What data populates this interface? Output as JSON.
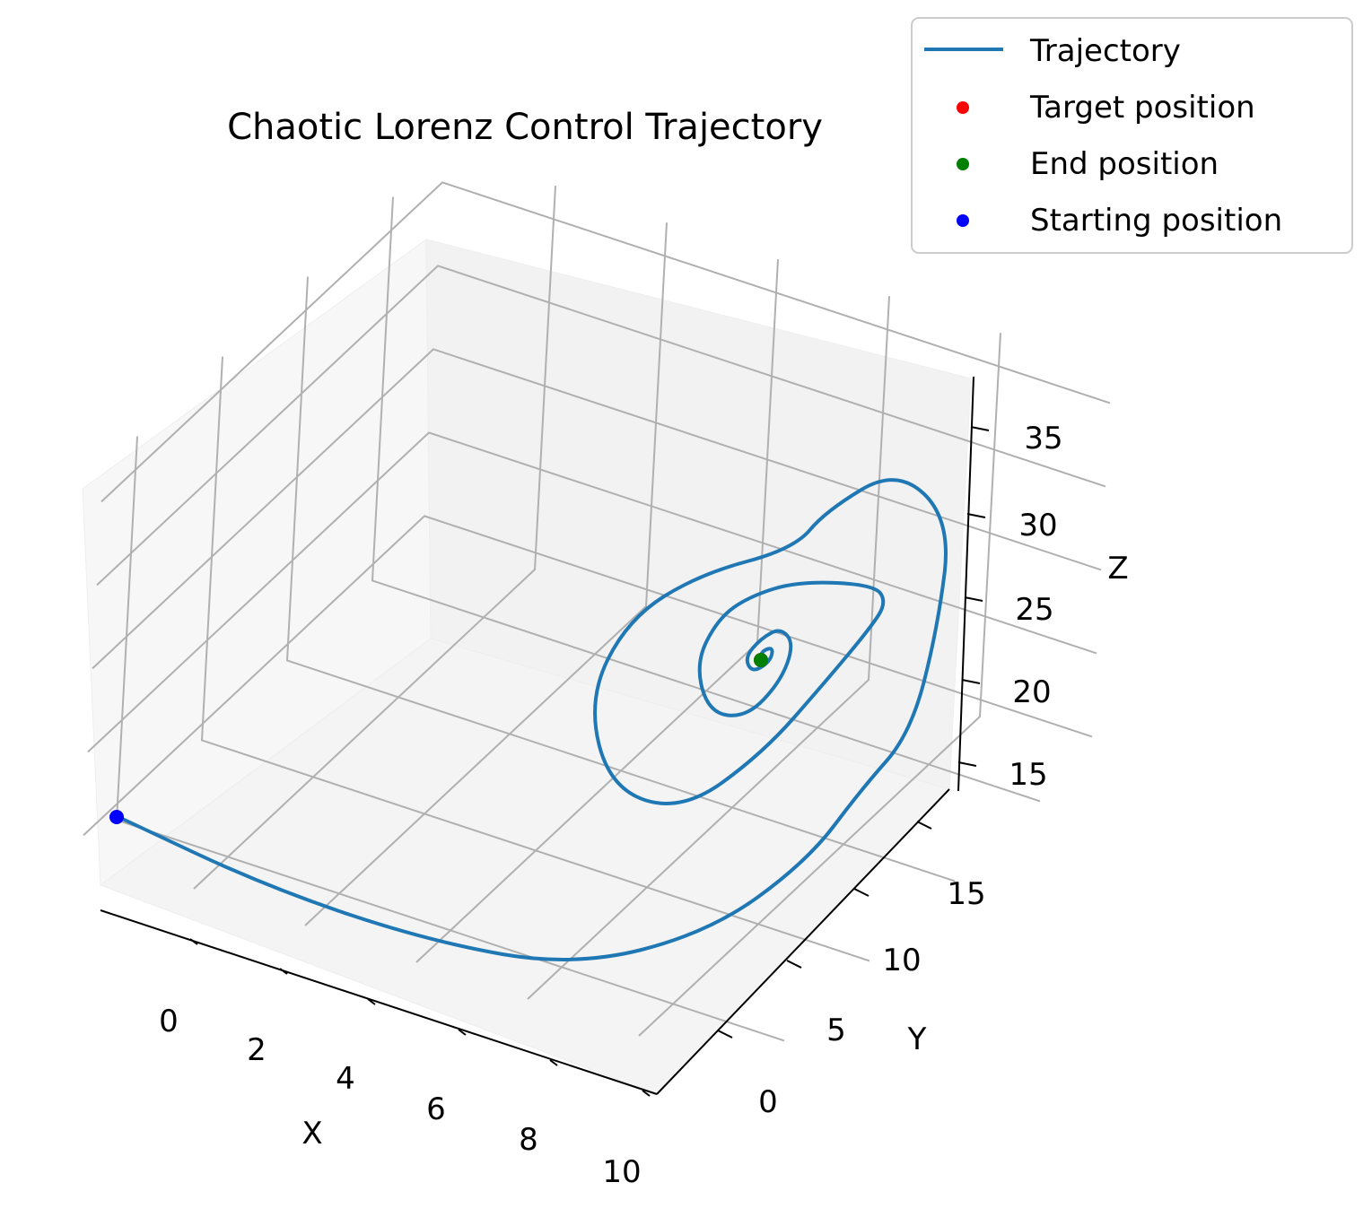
{
  "chart_data": {
    "type": "line",
    "projection": "3d",
    "title": "Chaotic Lorenz Control Trajectory",
    "xlabel": "X",
    "ylabel": "Y",
    "zlabel": "Z",
    "xlim": [
      -2,
      10
    ],
    "ylim": [
      -2,
      18
    ],
    "zlim": [
      14,
      37
    ],
    "x_ticks": [
      "0",
      "2",
      "4",
      "6",
      "8",
      "10"
    ],
    "y_ticks": [
      "0",
      "5",
      "10",
      "15"
    ],
    "z_ticks": [
      "15",
      "20",
      "25",
      "30",
      "35"
    ],
    "grid": true,
    "legend_position": "top-right",
    "legend": [
      {
        "label": "Trajectory",
        "kind": "line",
        "color": "#1f77b4"
      },
      {
        "label": "Target position",
        "kind": "marker",
        "color": "#ff0000"
      },
      {
        "label": "End position",
        "kind": "marker",
        "color": "#008000"
      },
      {
        "label": "Starting position",
        "kind": "marker",
        "color": "#0000ff"
      }
    ],
    "series": [
      {
        "name": "Trajectory",
        "color": "#1f77b4",
        "points": [
          {
            "x": -1.0,
            "y": 2.0,
            "z": 15.0
          },
          {
            "x": 2.0,
            "y": 2.5,
            "z": 12.0
          },
          {
            "x": 5.0,
            "y": 4.5,
            "z": 10.5
          },
          {
            "x": 7.5,
            "y": 8.0,
            "z": 11.5
          },
          {
            "x": 8.8,
            "y": 12.0,
            "z": 15.0
          },
          {
            "x": 9.0,
            "y": 14.5,
            "z": 20.0
          },
          {
            "x": 9.2,
            "y": 15.5,
            "z": 27.0
          },
          {
            "x": 8.2,
            "y": 14.5,
            "z": 33.0
          },
          {
            "x": 7.0,
            "y": 12.5,
            "z": 28.5
          },
          {
            "x": 5.5,
            "y": 10.0,
            "z": 25.0
          },
          {
            "x": 5.2,
            "y": 8.5,
            "z": 21.5
          },
          {
            "x": 6.0,
            "y": 8.5,
            "z": 18.5
          },
          {
            "x": 7.6,
            "y": 10.5,
            "z": 19.0
          },
          {
            "x": 8.6,
            "y": 13.0,
            "z": 22.0
          },
          {
            "x": 8.4,
            "y": 13.0,
            "z": 25.5
          },
          {
            "x": 7.2,
            "y": 11.0,
            "z": 25.0
          },
          {
            "x": 6.6,
            "y": 10.0,
            "z": 22.5
          },
          {
            "x": 6.8,
            "y": 9.8,
            "z": 21.0
          },
          {
            "x": 7.4,
            "y": 10.5,
            "z": 21.0
          },
          {
            "x": 7.8,
            "y": 11.5,
            "z": 22.5
          },
          {
            "x": 7.6,
            "y": 11.5,
            "z": 23.2
          },
          {
            "x": 7.2,
            "y": 11.0,
            "z": 22.8
          },
          {
            "x": 7.1,
            "y": 10.8,
            "z": 22.2
          },
          {
            "x": 7.3,
            "y": 11.0,
            "z": 22.0
          },
          {
            "x": 7.5,
            "y": 11.2,
            "z": 22.3
          },
          {
            "x": 7.4,
            "y": 11.2,
            "z": 22.5
          }
        ]
      }
    ],
    "markers": [
      {
        "name": "Target position",
        "color": "#ff0000",
        "x": 7.4,
        "y": 11.2,
        "z": 22.5
      },
      {
        "name": "End position",
        "color": "#008000",
        "x": 7.4,
        "y": 11.2,
        "z": 22.5
      },
      {
        "name": "Starting position",
        "color": "#0000ff",
        "x": -1.0,
        "y": 2.0,
        "z": 15.0
      }
    ]
  }
}
